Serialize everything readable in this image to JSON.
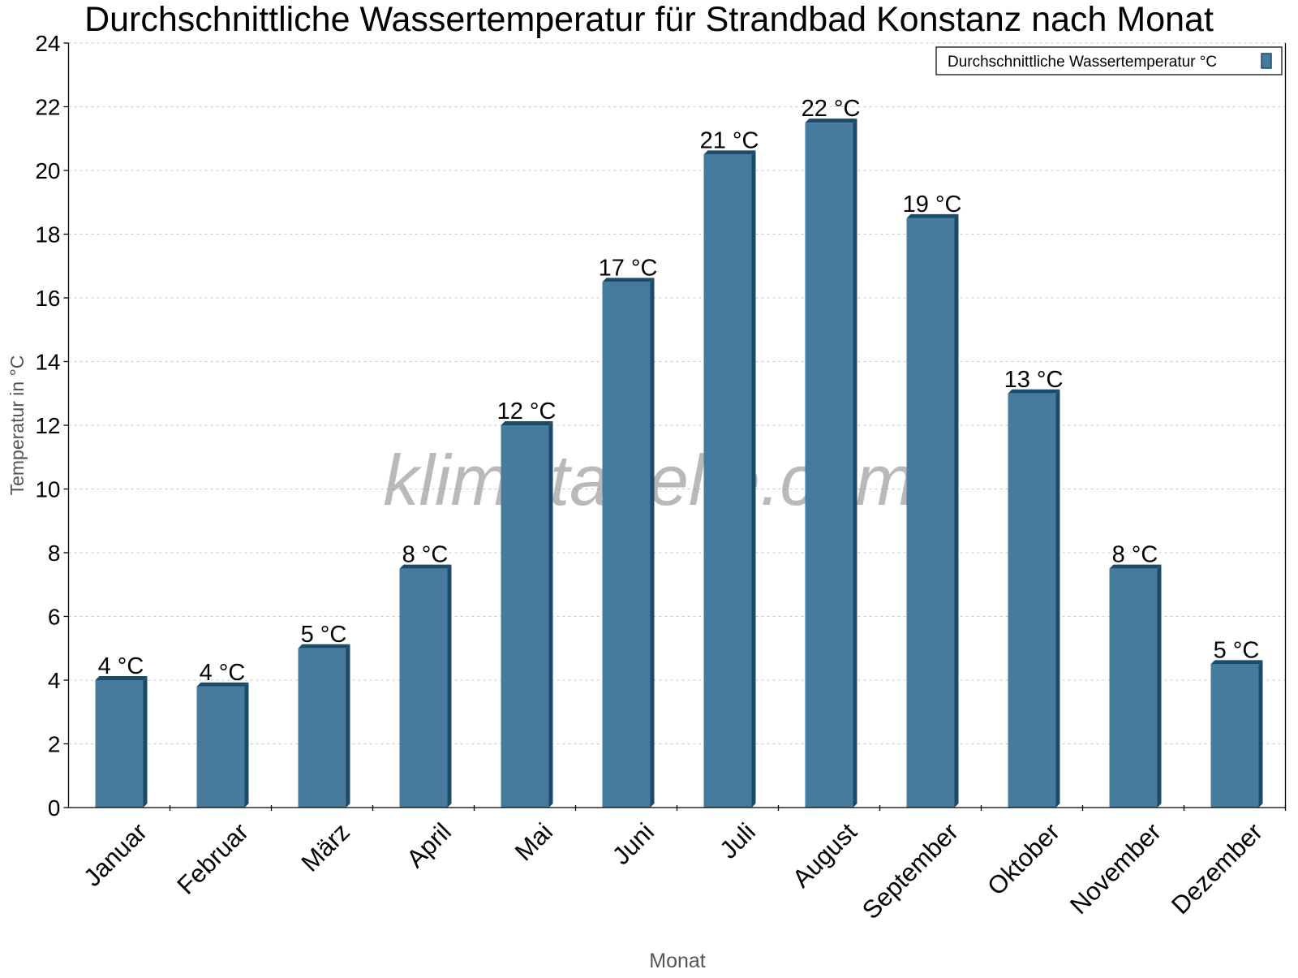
{
  "chart_data": {
    "type": "bar",
    "title": "Durchschnittliche Wassertemperatur für Strandbad Konstanz nach Monat",
    "xlabel": "Monat",
    "ylabel": "Temperatur in °C",
    "ylim": [
      0,
      24
    ],
    "yticks": [
      0,
      2,
      4,
      6,
      8,
      10,
      12,
      14,
      16,
      18,
      20,
      22,
      24
    ],
    "grid": true,
    "legend_position": "top-right",
    "categories": [
      "Januar",
      "Februar",
      "März",
      "April",
      "Mai",
      "Juni",
      "Juli",
      "August",
      "September",
      "Oktober",
      "November",
      "Dezember"
    ],
    "series": [
      {
        "name": "Durchschnittliche Wassertemperatur °C",
        "values": [
          4.0,
          3.8,
          5.0,
          7.5,
          12.0,
          16.5,
          20.5,
          21.5,
          18.5,
          13.0,
          7.5,
          4.5
        ],
        "labels": [
          "4 °C",
          "4 °C",
          "5 °C",
          "8 °C",
          "12 °C",
          "17 °C",
          "21 °C",
          "22 °C",
          "19 °C",
          "13 °C",
          "8 °C",
          "5 °C"
        ],
        "color": "#467b9d",
        "side_color": "#1b4b6b"
      }
    ],
    "watermark": "klimatabelle.com"
  }
}
